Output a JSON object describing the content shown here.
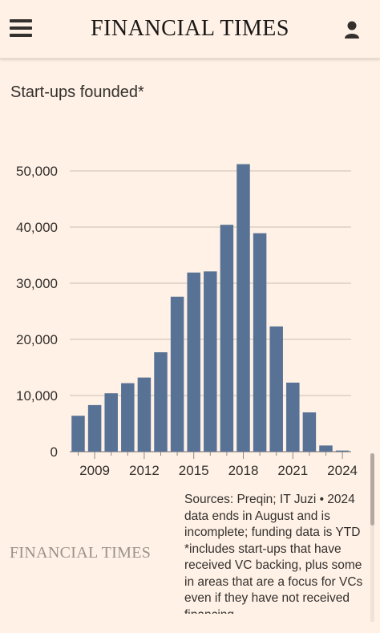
{
  "header": {
    "brand": "FINANCIAL TIMES",
    "menu_icon": "hamburger-menu-icon",
    "user_icon": "user-account-icon"
  },
  "chart_title": "Start-ups founded*",
  "chart_data": {
    "type": "bar",
    "title": "Start-ups founded*",
    "categories": [
      "2008",
      "2009",
      "2010",
      "2011",
      "2012",
      "2013",
      "2014",
      "2015",
      "2016",
      "2017",
      "2018",
      "2019",
      "2020",
      "2021",
      "2022",
      "2023",
      "2024"
    ],
    "values": [
      6400,
      8300,
      10400,
      12200,
      13200,
      17700,
      27600,
      31900,
      32100,
      40400,
      51200,
      38900,
      22300,
      12300,
      7000,
      1100,
      200
    ],
    "x_tick_labels": [
      "2009",
      "2012",
      "2015",
      "2018",
      "2021",
      "2024"
    ],
    "y_ticks": [
      0,
      10000,
      20000,
      30000,
      40000,
      50000
    ],
    "y_tick_labels": [
      "0",
      "10,000",
      "20,000",
      "30,000",
      "40,000",
      "50,000"
    ],
    "ylim": [
      0,
      50000
    ],
    "grid": true,
    "bar_color": "#587296"
  },
  "sources": {
    "lines": [
      "Sources: Preqin; IT Juzi • 2024",
      "data ends in August and is",
      "incomplete; funding data is YTD",
      "*includes start-ups that have",
      "received VC backing, plus some",
      "in areas that are a focus for VCs",
      "even if they have not received",
      "financing"
    ]
  },
  "footer": {
    "brand": "FINANCIAL TIMES"
  },
  "colors": {
    "background": "#FFF1E5",
    "bars": "#587296",
    "gridlines": "#C9BEB5",
    "text": "#33302E"
  }
}
